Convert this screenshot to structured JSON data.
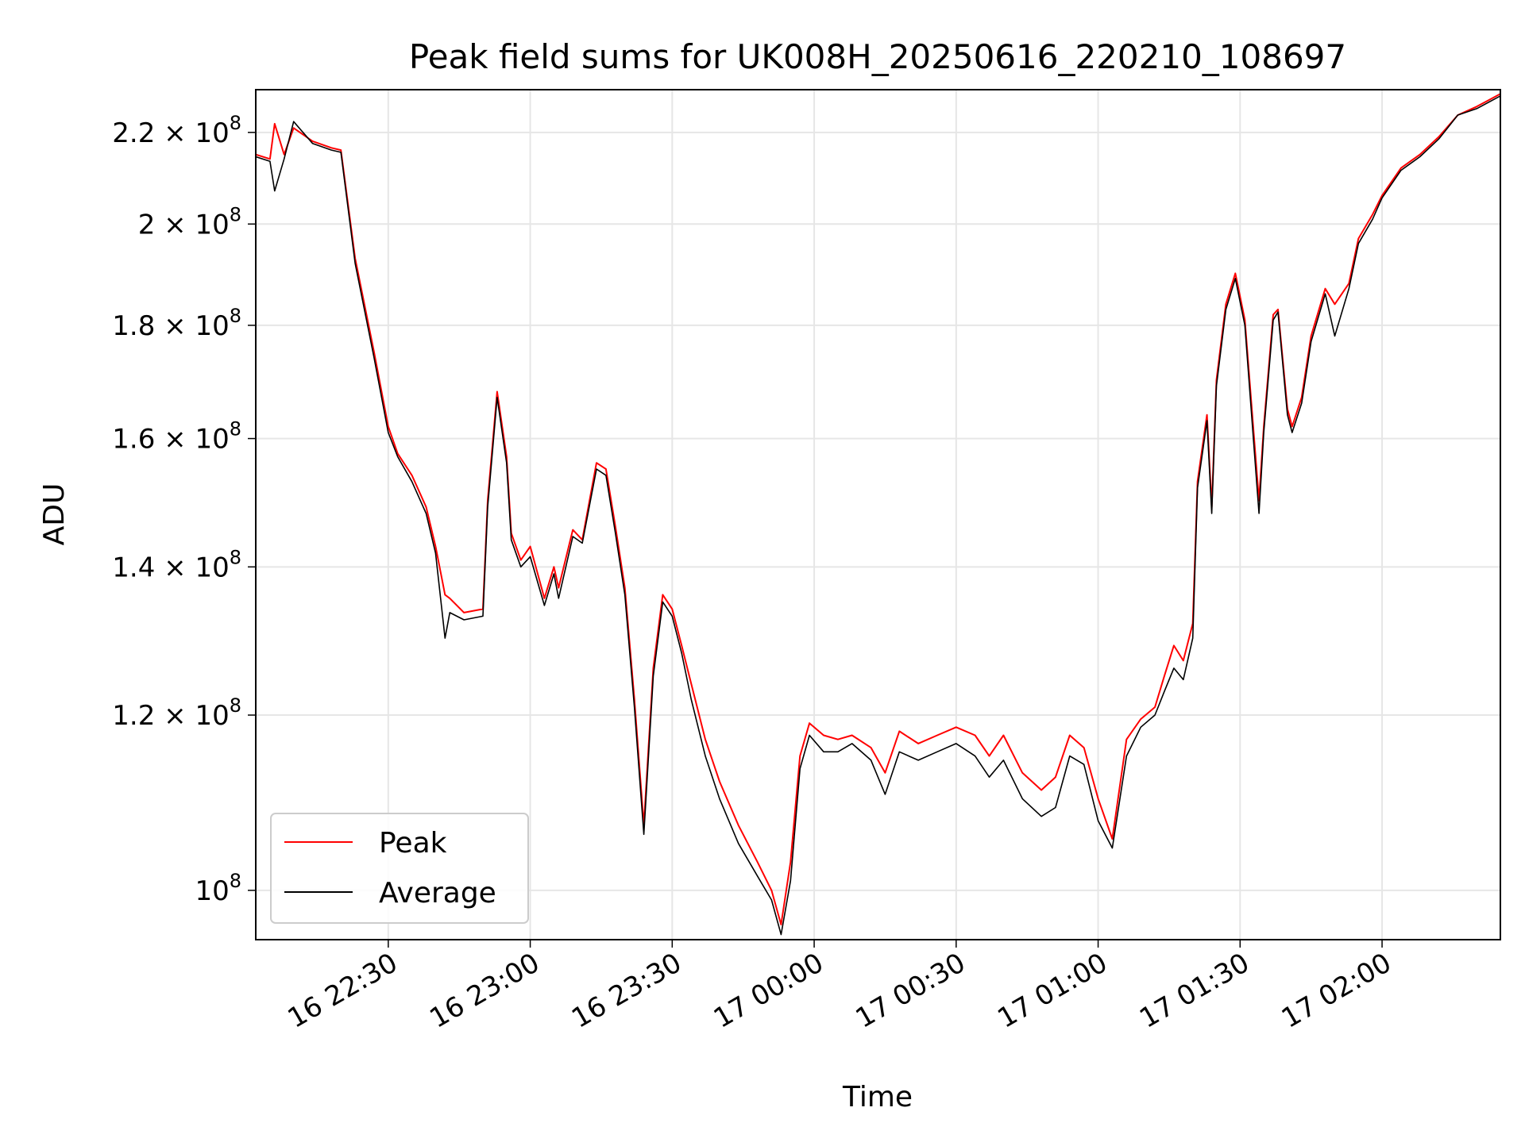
{
  "chart_data": {
    "type": "line",
    "title": "Peak field sums for UK008H_20250616_220210_108697",
    "xlabel": "Time",
    "ylabel": "ADU",
    "y_scale": "log",
    "grid": true,
    "legend_placement": "lower-left",
    "xlim": [
      "2025-06-16 22:02:00",
      "2025-06-17 02:25:00"
    ],
    "ylim": [
      95000000,
      230000000
    ],
    "x_ticks": [
      {
        "value": "2025-06-16 22:30:00",
        "label": "16 22:30"
      },
      {
        "value": "2025-06-16 23:00:00",
        "label": "16 23:00"
      },
      {
        "value": "2025-06-16 23:30:00",
        "label": "16 23:30"
      },
      {
        "value": "2025-06-17 00:00:00",
        "label": "17 00:00"
      },
      {
        "value": "2025-06-17 00:30:00",
        "label": "17 00:30"
      },
      {
        "value": "2025-06-17 01:00:00",
        "label": "17 01:00"
      },
      {
        "value": "2025-06-17 01:30:00",
        "label": "17 01:30"
      },
      {
        "value": "2025-06-17 02:00:00",
        "label": "17 02:00"
      }
    ],
    "y_ticks": [
      {
        "value": 100000000,
        "mantissa": "",
        "exponent": "8"
      },
      {
        "value": 120000000,
        "mantissa": "1.2",
        "exponent": "8"
      },
      {
        "value": 140000000,
        "mantissa": "1.4",
        "exponent": "8"
      },
      {
        "value": 160000000,
        "mantissa": "1.6",
        "exponent": "8"
      },
      {
        "value": 180000000,
        "mantissa": "1.8",
        "exponent": "8"
      },
      {
        "value": 200000000,
        "mantissa": "2",
        "exponent": "8"
      },
      {
        "value": 220000000,
        "mantissa": "2.2",
        "exponent": "8"
      }
    ],
    "series": [
      {
        "name": "Peak",
        "color": "#ff0000",
        "x": [
          "2025-06-16 22:02:00",
          "2025-06-16 22:05:00",
          "2025-06-16 22:06:00",
          "2025-06-16 22:08:00",
          "2025-06-16 22:10:00",
          "2025-06-16 22:14:00",
          "2025-06-16 22:18:00",
          "2025-06-16 22:20:00",
          "2025-06-16 22:23:00",
          "2025-06-16 22:27:00",
          "2025-06-16 22:30:00",
          "2025-06-16 22:32:00",
          "2025-06-16 22:35:00",
          "2025-06-16 22:38:00",
          "2025-06-16 22:40:00",
          "2025-06-16 22:42:00",
          "2025-06-16 22:43:00",
          "2025-06-16 22:46:00",
          "2025-06-16 22:50:00",
          "2025-06-16 22:51:00",
          "2025-06-16 22:53:00",
          "2025-06-16 22:55:00",
          "2025-06-16 22:56:00",
          "2025-06-16 22:58:00",
          "2025-06-16 23:00:00",
          "2025-06-16 23:03:00",
          "2025-06-16 23:05:00",
          "2025-06-16 23:06:00",
          "2025-06-16 23:09:00",
          "2025-06-16 23:11:00",
          "2025-06-16 23:14:00",
          "2025-06-16 23:16:00",
          "2025-06-16 23:18:00",
          "2025-06-16 23:20:00",
          "2025-06-16 23:22:00",
          "2025-06-16 23:24:00",
          "2025-06-16 23:26:00",
          "2025-06-16 23:28:00",
          "2025-06-16 23:30:00",
          "2025-06-16 23:32:00",
          "2025-06-16 23:34:00",
          "2025-06-16 23:37:00",
          "2025-06-16 23:40:00",
          "2025-06-16 23:44:00",
          "2025-06-16 23:48:00",
          "2025-06-16 23:51:00",
          "2025-06-16 23:53:00",
          "2025-06-16 23:55:00",
          "2025-06-16 23:57:00",
          "2025-06-16 23:59:00",
          "2025-06-17 00:02:00",
          "2025-06-17 00:05:00",
          "2025-06-17 00:08:00",
          "2025-06-17 00:12:00",
          "2025-06-17 00:15:00",
          "2025-06-17 00:18:00",
          "2025-06-17 00:22:00",
          "2025-06-17 00:26:00",
          "2025-06-17 00:30:00",
          "2025-06-17 00:34:00",
          "2025-06-17 00:37:00",
          "2025-06-17 00:40:00",
          "2025-06-17 00:44:00",
          "2025-06-17 00:48:00",
          "2025-06-17 00:51:00",
          "2025-06-17 00:54:00",
          "2025-06-17 00:57:00",
          "2025-06-17 01:00:00",
          "2025-06-17 01:03:00",
          "2025-06-17 01:06:00",
          "2025-06-17 01:09:00",
          "2025-06-17 01:12:00",
          "2025-06-17 01:14:00",
          "2025-06-17 01:16:00",
          "2025-06-17 01:18:00",
          "2025-06-17 01:20:00",
          "2025-06-17 01:21:00",
          "2025-06-17 01:23:00",
          "2025-06-17 01:24:00",
          "2025-06-17 01:25:00",
          "2025-06-17 01:27:00",
          "2025-06-17 01:29:00",
          "2025-06-17 01:31:00",
          "2025-06-17 01:34:00",
          "2025-06-17 01:35:00",
          "2025-06-17 01:37:00",
          "2025-06-17 01:38:00",
          "2025-06-17 01:40:00",
          "2025-06-17 01:41:00",
          "2025-06-17 01:43:00",
          "2025-06-17 01:45:00",
          "2025-06-17 01:48:00",
          "2025-06-17 01:50:00",
          "2025-06-17 01:53:00",
          "2025-06-17 01:55:00",
          "2025-06-17 01:58:00",
          "2025-06-17 02:00:00",
          "2025-06-17 02:04:00",
          "2025-06-17 02:08:00",
          "2025-06-17 02:12:00",
          "2025-06-17 02:16:00",
          "2025-06-17 02:20:00",
          "2025-06-17 02:25:00"
        ],
        "values": [
          215000000,
          214000000,
          222000000,
          215000000,
          221000000,
          218000000,
          216500000,
          216000000,
          193000000,
          175000000,
          162000000,
          157500000,
          154000000,
          149000000,
          143000000,
          136000000,
          135500000,
          133500000,
          134000000,
          150000000,
          168000000,
          157000000,
          145000000,
          141000000,
          143000000,
          135500000,
          140000000,
          137000000,
          145500000,
          144000000,
          156000000,
          155000000,
          146000000,
          137000000,
          122000000,
          107000000,
          126000000,
          136000000,
          134000000,
          129000000,
          124000000,
          117000000,
          112000000,
          107000000,
          103000000,
          100000000,
          96500000,
          103000000,
          115000000,
          119000000,
          117500000,
          117000000,
          117500000,
          116000000,
          113000000,
          118000000,
          116500000,
          117500000,
          118500000,
          117500000,
          115000000,
          117500000,
          113000000,
          111000000,
          112500000,
          117500000,
          116000000,
          110000000,
          105500000,
          117000000,
          119500000,
          121000000,
          125000000,
          129000000,
          127000000,
          132000000,
          153000000,
          164000000,
          149000000,
          170000000,
          184000000,
          190000000,
          181000000,
          150000000,
          162000000,
          182000000,
          183000000,
          165000000,
          162000000,
          167000000,
          178000000,
          187000000,
          184000000,
          188000000,
          197000000,
          202000000,
          206000000,
          212000000,
          215000000,
          219000000,
          224000000,
          226000000,
          229000000
        ]
      },
      {
        "name": "Average",
        "color": "#000000",
        "x": [
          "2025-06-16 22:02:00",
          "2025-06-16 22:05:00",
          "2025-06-16 22:06:00",
          "2025-06-16 22:08:00",
          "2025-06-16 22:10:00",
          "2025-06-16 22:14:00",
          "2025-06-16 22:18:00",
          "2025-06-16 22:20:00",
          "2025-06-16 22:23:00",
          "2025-06-16 22:27:00",
          "2025-06-16 22:30:00",
          "2025-06-16 22:32:00",
          "2025-06-16 22:35:00",
          "2025-06-16 22:38:00",
          "2025-06-16 22:40:00",
          "2025-06-16 22:42:00",
          "2025-06-16 22:43:00",
          "2025-06-16 22:46:00",
          "2025-06-16 22:50:00",
          "2025-06-16 22:51:00",
          "2025-06-16 22:53:00",
          "2025-06-16 22:55:00",
          "2025-06-16 22:56:00",
          "2025-06-16 22:58:00",
          "2025-06-16 23:00:00",
          "2025-06-16 23:03:00",
          "2025-06-16 23:05:00",
          "2025-06-16 23:06:00",
          "2025-06-16 23:09:00",
          "2025-06-16 23:11:00",
          "2025-06-16 23:14:00",
          "2025-06-16 23:16:00",
          "2025-06-16 23:18:00",
          "2025-06-16 23:20:00",
          "2025-06-16 23:22:00",
          "2025-06-16 23:24:00",
          "2025-06-16 23:26:00",
          "2025-06-16 23:28:00",
          "2025-06-16 23:30:00",
          "2025-06-16 23:32:00",
          "2025-06-16 23:34:00",
          "2025-06-16 23:37:00",
          "2025-06-16 23:40:00",
          "2025-06-16 23:44:00",
          "2025-06-16 23:48:00",
          "2025-06-16 23:51:00",
          "2025-06-16 23:53:00",
          "2025-06-16 23:55:00",
          "2025-06-16 23:57:00",
          "2025-06-16 23:59:00",
          "2025-06-17 00:02:00",
          "2025-06-17 00:05:00",
          "2025-06-17 00:08:00",
          "2025-06-17 00:12:00",
          "2025-06-17 00:15:00",
          "2025-06-17 00:18:00",
          "2025-06-17 00:22:00",
          "2025-06-17 00:26:00",
          "2025-06-17 00:30:00",
          "2025-06-17 00:34:00",
          "2025-06-17 00:37:00",
          "2025-06-17 00:40:00",
          "2025-06-17 00:44:00",
          "2025-06-17 00:48:00",
          "2025-06-17 00:51:00",
          "2025-06-17 00:54:00",
          "2025-06-17 00:57:00",
          "2025-06-17 01:00:00",
          "2025-06-17 01:03:00",
          "2025-06-17 01:06:00",
          "2025-06-17 01:09:00",
          "2025-06-17 01:12:00",
          "2025-06-17 01:14:00",
          "2025-06-17 01:16:00",
          "2025-06-17 01:18:00",
          "2025-06-17 01:20:00",
          "2025-06-17 01:21:00",
          "2025-06-17 01:23:00",
          "2025-06-17 01:24:00",
          "2025-06-17 01:25:00",
          "2025-06-17 01:27:00",
          "2025-06-17 01:29:00",
          "2025-06-17 01:31:00",
          "2025-06-17 01:34:00",
          "2025-06-17 01:35:00",
          "2025-06-17 01:37:00",
          "2025-06-17 01:38:00",
          "2025-06-17 01:40:00",
          "2025-06-17 01:41:00",
          "2025-06-17 01:43:00",
          "2025-06-17 01:45:00",
          "2025-06-17 01:48:00",
          "2025-06-17 01:50:00",
          "2025-06-17 01:53:00",
          "2025-06-17 01:55:00",
          "2025-06-17 01:58:00",
          "2025-06-17 02:00:00",
          "2025-06-17 02:04:00",
          "2025-06-17 02:08:00",
          "2025-06-17 02:12:00",
          "2025-06-17 02:16:00",
          "2025-06-17 02:20:00",
          "2025-06-17 02:25:00"
        ],
        "values": [
          214500000,
          213500000,
          207000000,
          214000000,
          222500000,
          217500000,
          216000000,
          215500000,
          192000000,
          174000000,
          161000000,
          157000000,
          153000000,
          148000000,
          142000000,
          130000000,
          133500000,
          132500000,
          133000000,
          149000000,
          167000000,
          156000000,
          144000000,
          140000000,
          141500000,
          134500000,
          139000000,
          135500000,
          144500000,
          143500000,
          155000000,
          154000000,
          145000000,
          136000000,
          121000000,
          106000000,
          125000000,
          135000000,
          133000000,
          128000000,
          122000000,
          115000000,
          110000000,
          105000000,
          101500000,
          99000000,
          95500000,
          101000000,
          113500000,
          117500000,
          115500000,
          115500000,
          116500000,
          114500000,
          110500000,
          115500000,
          114500000,
          115500000,
          116500000,
          115000000,
          112500000,
          114500000,
          110000000,
          108000000,
          109000000,
          115000000,
          114000000,
          107500000,
          104500000,
          115000000,
          118500000,
          120000000,
          123000000,
          126000000,
          124500000,
          130000000,
          152000000,
          163000000,
          148000000,
          169000000,
          183000000,
          189000000,
          180000000,
          148000000,
          161000000,
          181000000,
          182500000,
          164000000,
          161000000,
          166000000,
          177000000,
          186000000,
          178000000,
          187000000,
          196000000,
          201000000,
          205500000,
          211500000,
          214500000,
          218500000,
          224000000,
          225500000,
          228500000
        ]
      }
    ]
  }
}
